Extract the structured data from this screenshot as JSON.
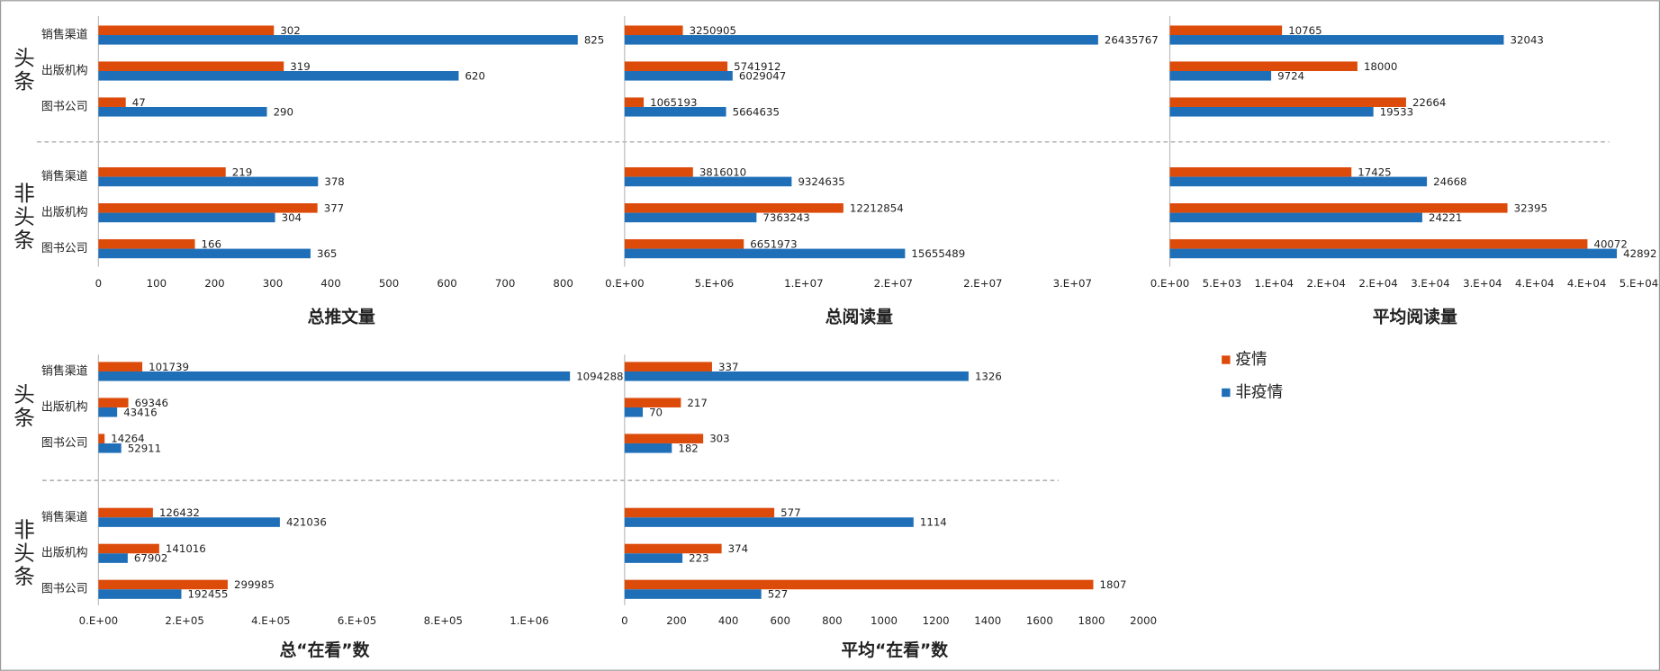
{
  "chart_data": [
    {
      "type": "bar",
      "title": "总推文量",
      "groups": [
        "头条",
        "非头条"
      ],
      "categories": [
        "销售渠道",
        "出版机构",
        "图书公司",
        "销售渠道",
        "出版机构",
        "图书公司"
      ],
      "series": [
        {
          "name": "疫情",
          "color": "#dd4b0b",
          "values": [
            302,
            319,
            47,
            219,
            377,
            166
          ]
        },
        {
          "name": "非疫情",
          "color": "#1f6fb8",
          "values": [
            825,
            620,
            290,
            378,
            304,
            365
          ]
        }
      ],
      "xlim": [
        0,
        800
      ],
      "xticks": [
        0,
        100,
        200,
        300,
        400,
        500,
        600,
        700,
        800
      ]
    },
    {
      "type": "bar",
      "title": "总阅读量",
      "series": [
        {
          "color": "#dd4b0b",
          "values": [
            3250905,
            5741912,
            1065193,
            3816010,
            12212854,
            6651973
          ]
        },
        {
          "color": "#1f6fb8",
          "values": [
            26435767,
            6029047,
            5664635,
            9324635,
            7363243,
            15655489
          ]
        }
      ],
      "xlim": [
        0,
        25000000
      ],
      "xticks": [
        {
          "value": 0,
          "label": "0.E+00"
        },
        {
          "value": 5000000,
          "label": "5.E+06"
        },
        {
          "value": 10000000,
          "label": "1.E+07"
        },
        {
          "value": 15000000,
          "label": "2.E+07"
        },
        {
          "value": 20000000,
          "label": "2.E+07"
        },
        {
          "value": 25000000,
          "label": "3.E+07"
        }
      ]
    },
    {
      "type": "bar",
      "title": "平均阅读量",
      "series": [
        {
          "color": "#dd4b0b",
          "values": [
            10765,
            18000,
            22664,
            17425,
            32395,
            40072
          ]
        },
        {
          "color": "#1f6fb8",
          "values": [
            32043,
            9724,
            19533,
            24668,
            24221,
            42892
          ]
        }
      ],
      "xlim": [
        0,
        45000
      ],
      "xticks": [
        {
          "value": 0,
          "label": "0.E+00"
        },
        {
          "value": 5000,
          "label": "5.E+03"
        },
        {
          "value": 10000,
          "label": "1.E+04"
        },
        {
          "value": 15000,
          "label": "2.E+04"
        },
        {
          "value": 20000,
          "label": "2.E+04"
        },
        {
          "value": 25000,
          "label": "3.E+04"
        },
        {
          "value": 30000,
          "label": "3.E+04"
        },
        {
          "value": 35000,
          "label": "4.E+04"
        },
        {
          "value": 40000,
          "label": "4.E+04"
        },
        {
          "value": 45000,
          "label": "5.E+04"
        }
      ]
    },
    {
      "type": "bar",
      "title": "总“在看”数",
      "groups": [
        "头条",
        "非头条"
      ],
      "categories": [
        "销售渠道",
        "出版机构",
        "图书公司",
        "销售渠道",
        "出版机构",
        "图书公司"
      ],
      "series": [
        {
          "color": "#dd4b0b",
          "values": [
            101739,
            69346,
            14264,
            126432,
            141016,
            299985
          ]
        },
        {
          "color": "#1f6fb8",
          "values": [
            1094288,
            43416,
            52911,
            421036,
            67902,
            192455
          ]
        }
      ],
      "xlim": [
        0,
        1000000
      ],
      "xticks": [
        {
          "value": 0,
          "label": "0.E+00"
        },
        {
          "value": 200000,
          "label": "2.E+05"
        },
        {
          "value": 400000,
          "label": "4.E+05"
        },
        {
          "value": 600000,
          "label": "6.E+05"
        },
        {
          "value": 800000,
          "label": "8.E+05"
        },
        {
          "value": 1000000,
          "label": "1.E+06"
        }
      ]
    },
    {
      "type": "bar",
      "title": "平均“在看”数",
      "series": [
        {
          "color": "#dd4b0b",
          "values": [
            337,
            217,
            303,
            577,
            374,
            1807
          ]
        },
        {
          "color": "#1f6fb8",
          "values": [
            1326,
            70,
            182,
            1114,
            223,
            527
          ]
        }
      ],
      "xlim": [
        0,
        2000
      ],
      "xticks": [
        0,
        200,
        400,
        600,
        800,
        1000,
        1200,
        1400,
        1600,
        1800,
        2000
      ]
    }
  ]
}
